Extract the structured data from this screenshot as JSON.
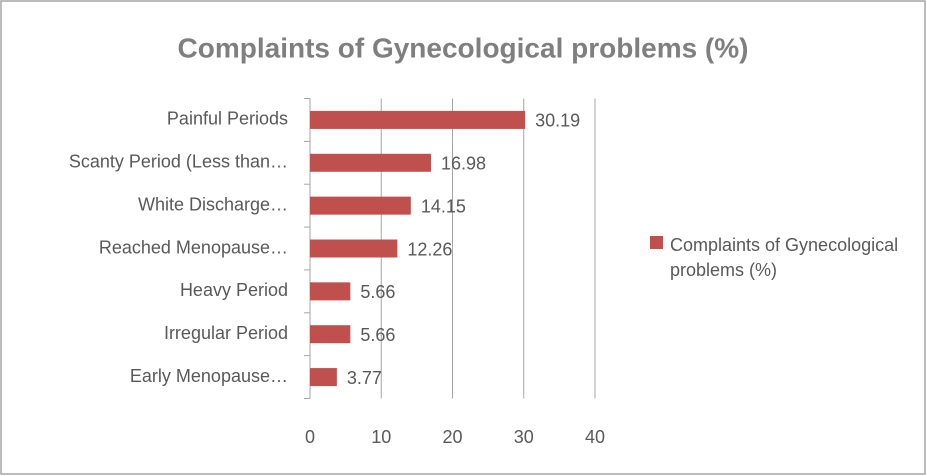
{
  "chart_data": {
    "type": "hbar",
    "title": "Complaints of Gynecological problems (%)",
    "categories": [
      "Painful Periods",
      "Scanty Period (Less than…",
      "White Discharge…",
      "Reached Menopause…",
      "Heavy Period",
      "Irregular Period",
      "Early Menopause…"
    ],
    "series": [
      {
        "name": "Complaints of Gynecological problems (%)",
        "color": "#c0504d",
        "values": [
          30.19,
          16.98,
          14.15,
          12.26,
          5.66,
          5.66,
          3.77
        ]
      }
    ],
    "xlim": [
      0,
      40
    ],
    "xticks": [
      0,
      10,
      20,
      30,
      40
    ],
    "grid": true,
    "legend": "right"
  }
}
